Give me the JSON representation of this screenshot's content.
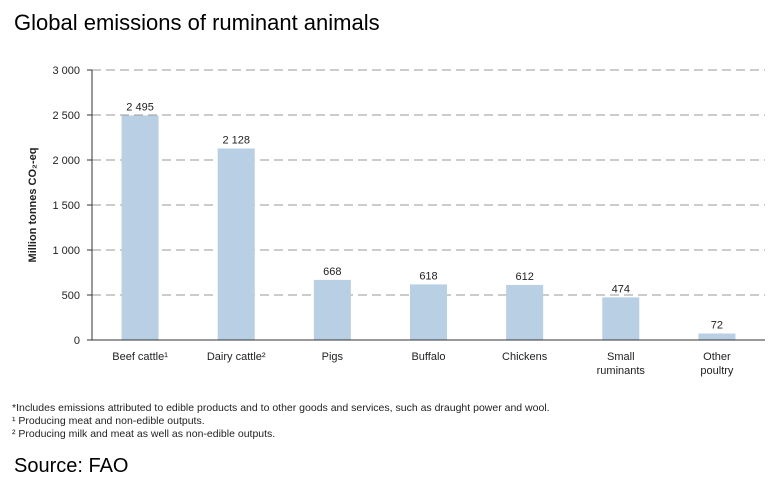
{
  "title": "Global emissions of ruminant animals",
  "source": "Source: FAO",
  "footnotes": [
    "*Includes emissions attributed to edible products and to other goods and services, such as draught power and wool.",
    "¹ Producing meat and non-edible outputs.",
    "² Producing milk and meat as well as non-edible outputs."
  ],
  "colors": {
    "bar": "#b9cfe4",
    "grid": "#999999",
    "text": "#222222"
  },
  "chart_data": {
    "type": "bar",
    "title": "Global emissions of ruminant animals",
    "ylabel": "Million tonnes CO₂-eq",
    "xlabel": "",
    "ylim": [
      0,
      3000
    ],
    "yticks": [
      0,
      500,
      1000,
      1500,
      2000,
      2500,
      3000
    ],
    "ytick_labels": [
      "0",
      "500",
      "1 000",
      "1 500",
      "2 000",
      "2 500",
      "3 000"
    ],
    "grid": true,
    "categories": [
      [
        "Beef cattle¹"
      ],
      [
        "Dairy cattle²"
      ],
      [
        "Pigs"
      ],
      [
        "Buffalo"
      ],
      [
        "Chickens"
      ],
      [
        "Small",
        "ruminants"
      ],
      [
        "Other",
        "poultry"
      ]
    ],
    "values": [
      2495,
      2128,
      668,
      618,
      612,
      474,
      72
    ],
    "value_labels": [
      "2 495",
      "2 128",
      "668",
      "618",
      "612",
      "474",
      "72"
    ]
  }
}
